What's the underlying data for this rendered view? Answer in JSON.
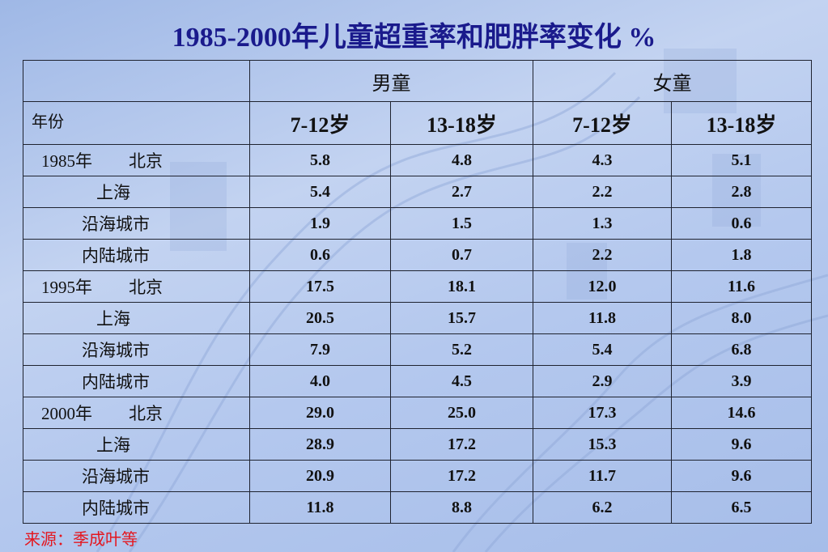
{
  "title": "1985-2000年儿童超重率和肥胖率变化 %",
  "header": {
    "groups": [
      "男童",
      "女童"
    ],
    "year_label": "年份",
    "age_columns": [
      "7-12岁",
      "13-18岁",
      "7-12岁",
      "13-18岁"
    ]
  },
  "rows": [
    {
      "year": "1985年",
      "region": "北京",
      "values": [
        "5.8",
        "4.8",
        "4.3",
        "5.1"
      ],
      "highlight": true
    },
    {
      "year": "",
      "region": "上海",
      "values": [
        "5.4",
        "2.7",
        "2.2",
        "2.8"
      ],
      "highlight": false
    },
    {
      "year": "",
      "region": "沿海城市",
      "values": [
        "1.9",
        "1.5",
        "1.3",
        "0.6"
      ],
      "highlight": false
    },
    {
      "year": "",
      "region": "内陆城市",
      "values": [
        "0.6",
        "0.7",
        "2.2",
        "1.8"
      ],
      "highlight": false
    },
    {
      "year": "1995年",
      "region": "北京",
      "values": [
        "17.5",
        "18.1",
        "12.0",
        "11.6"
      ],
      "highlight": true
    },
    {
      "year": "",
      "region": "上海",
      "values": [
        "20.5",
        "15.7",
        "11.8",
        "8.0"
      ],
      "highlight": false
    },
    {
      "year": "",
      "region": "沿海城市",
      "values": [
        "7.9",
        "5.2",
        "5.4",
        "6.8"
      ],
      "highlight": false
    },
    {
      "year": "",
      "region": "内陆城市",
      "values": [
        "4.0",
        "4.5",
        "2.9",
        "3.9"
      ],
      "highlight": false
    },
    {
      "year": "2000年",
      "region": "北京",
      "values": [
        "29.0",
        "25.0",
        "17.3",
        "14.6"
      ],
      "highlight": true
    },
    {
      "year": "",
      "region": "上海",
      "values": [
        "28.9",
        "17.2",
        "15.3",
        "9.6"
      ],
      "highlight": false
    },
    {
      "year": "",
      "region": "沿海城市",
      "values": [
        "20.9",
        "17.2",
        "11.7",
        "9.6"
      ],
      "highlight": false
    },
    {
      "year": "",
      "region": "内陆城市",
      "values": [
        "11.8",
        "8.8",
        "6.2",
        "6.5"
      ],
      "highlight": false
    }
  ],
  "source": "来源：季成叶等",
  "colors": {
    "title": "#1a1a8c",
    "highlight": "#e4161e",
    "text": "#111111",
    "border": "#1f2330"
  }
}
